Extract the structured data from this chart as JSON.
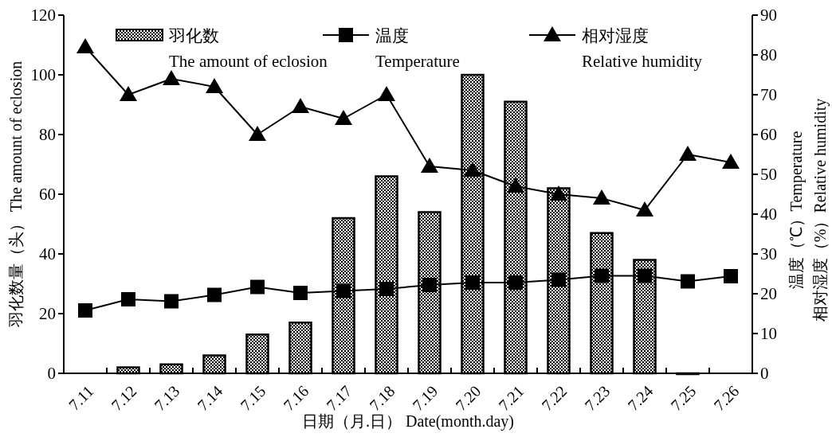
{
  "chart_data": {
    "type": "bar",
    "xlabel": "日期（月.日） Date(month.day)",
    "ylabel": "羽化数量（头） The amount of eclosion",
    "y2label": "温度（℃）Temperature\n相对湿度（%）Relative humidity",
    "categories": [
      "7.11",
      "7.12",
      "7.13",
      "7.14",
      "7.15",
      "7.16",
      "7.17",
      "7.18",
      "7.19",
      "7.20",
      "7.21",
      "7.22",
      "7.23",
      "7.24",
      "7.25",
      "7.26"
    ],
    "series": [
      {
        "name": "羽化数 The amount of eclosion",
        "color": "#000000",
        "values": [
          null,
          2,
          3,
          6,
          13,
          17,
          52,
          66,
          54,
          100,
          91,
          62,
          47,
          38,
          0,
          null
        ]
      },
      {
        "name": "温度 Temperature",
        "type": "line",
        "axis": "y2",
        "marker": "square",
        "color": "#000000",
        "values": [
          15.8,
          18.6,
          18.1,
          19.7,
          21.7,
          20.2,
          20.7,
          21.2,
          22.2,
          22.8,
          22.8,
          23.5,
          24.5,
          24.5,
          23.1,
          24.4
        ]
      },
      {
        "name": "相对湿度 Relative humidity",
        "type": "line",
        "axis": "y2",
        "marker": "triangle",
        "color": "#000000",
        "values": [
          82,
          70,
          74,
          72,
          60,
          67,
          64,
          70,
          52,
          51,
          47,
          45,
          44,
          41,
          55,
          53
        ]
      }
    ],
    "ylim": [
      0,
      120
    ],
    "yticks": [
      0,
      20,
      40,
      60,
      80,
      100,
      120
    ],
    "y2lim": [
      0,
      90
    ],
    "y2ticks": [
      0,
      10,
      20,
      30,
      40,
      50,
      60,
      70,
      80,
      90
    ],
    "legend": "top"
  }
}
